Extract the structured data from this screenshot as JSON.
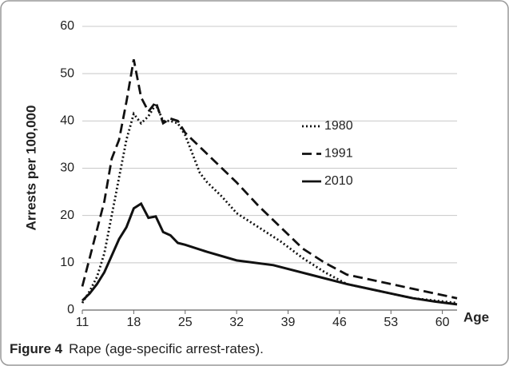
{
  "chart_data": {
    "type": "line",
    "ylabel": "Arrests per 100,000",
    "xlabel": "Age",
    "caption_label": "Figure 4",
    "caption_text": "Rape (age-specific arrest-rates).",
    "xlim": [
      11,
      62
    ],
    "xticks": [
      11,
      18,
      25,
      32,
      39,
      46,
      53,
      60
    ],
    "ylim": [
      0,
      60
    ],
    "yticks": [
      0,
      10,
      20,
      30,
      40,
      50,
      60
    ],
    "grid": true,
    "series": [
      {
        "name": "1980",
        "color": "#111111",
        "dash": "dotted",
        "x": [
          11,
          12,
          13,
          14,
          15,
          16,
          17,
          18,
          19,
          20,
          21,
          22,
          23,
          24,
          25,
          26,
          27,
          28,
          30,
          32,
          35,
          38,
          41,
          44,
          47,
          50,
          53,
          56,
          59,
          62
        ],
        "values": [
          1.5,
          4,
          7,
          12,
          20,
          28,
          36,
          41.5,
          39.5,
          41,
          43.5,
          40,
          40,
          39.5,
          37,
          33,
          29,
          27,
          24,
          20.5,
          17.5,
          14.5,
          11,
          8,
          5.5,
          4.5,
          3.5,
          2.5,
          2,
          1.5
        ]
      },
      {
        "name": "1991",
        "color": "#111111",
        "dash": "dashed",
        "x": [
          11,
          12,
          13,
          14,
          15,
          16,
          17,
          18,
          19,
          20,
          21,
          22,
          23,
          24,
          25,
          28,
          32,
          35,
          38,
          41,
          44,
          47,
          50,
          53,
          56,
          59,
          62
        ],
        "values": [
          5,
          11,
          17,
          23,
          32,
          36,
          44,
          53,
          45,
          42,
          44,
          39.5,
          40.5,
          40,
          37.5,
          33,
          27,
          22,
          17.5,
          13,
          10,
          7.5,
          6.5,
          5.5,
          4.5,
          3.5,
          2.5
        ]
      },
      {
        "name": "2010",
        "color": "#111111",
        "dash": "solid",
        "x": [
          11,
          12,
          13,
          14,
          15,
          16,
          17,
          18,
          19,
          20,
          21,
          22,
          23,
          24,
          25,
          28,
          32,
          37,
          42,
          47,
          50,
          53,
          56,
          59,
          62
        ],
        "values": [
          2,
          3.5,
          5.5,
          8,
          11.5,
          15,
          17.5,
          21.5,
          22.5,
          19.5,
          19.8,
          16.5,
          15.8,
          14.2,
          13.8,
          12.3,
          10.5,
          9.5,
          7.5,
          5.5,
          4.5,
          3.5,
          2.5,
          1.8,
          1.2
        ]
      }
    ]
  }
}
